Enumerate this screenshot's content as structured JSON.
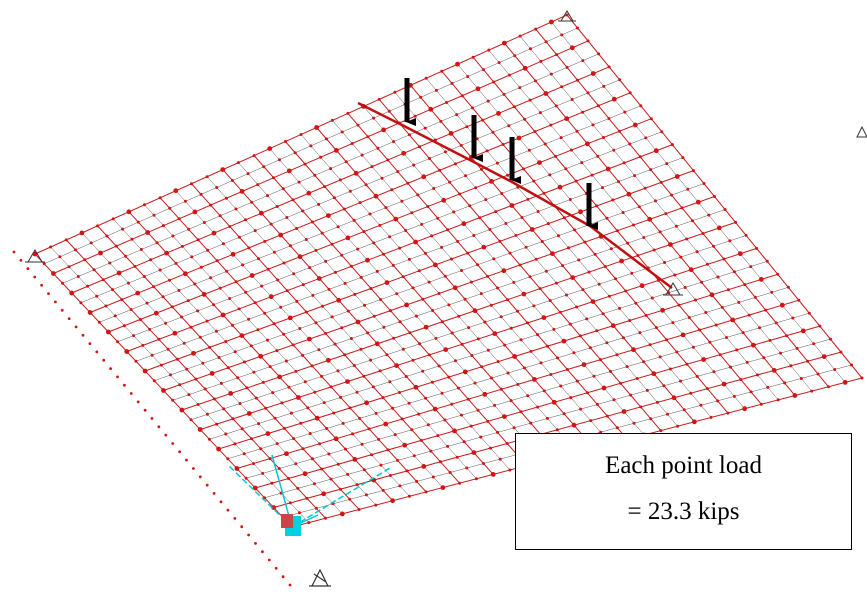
{
  "caption": {
    "line1": "Each point load",
    "line2": "= 23.3 kips"
  },
  "colors": {
    "mesh_line": "#c81e1e",
    "mesh_fine": "#555555",
    "node": "#d21414",
    "load_arrow": "#000000",
    "axis_triad": "#00c8d7",
    "caption_border": "#000000"
  },
  "model": {
    "point_loads": 4,
    "supports": 4,
    "view": "3d-perspective"
  }
}
